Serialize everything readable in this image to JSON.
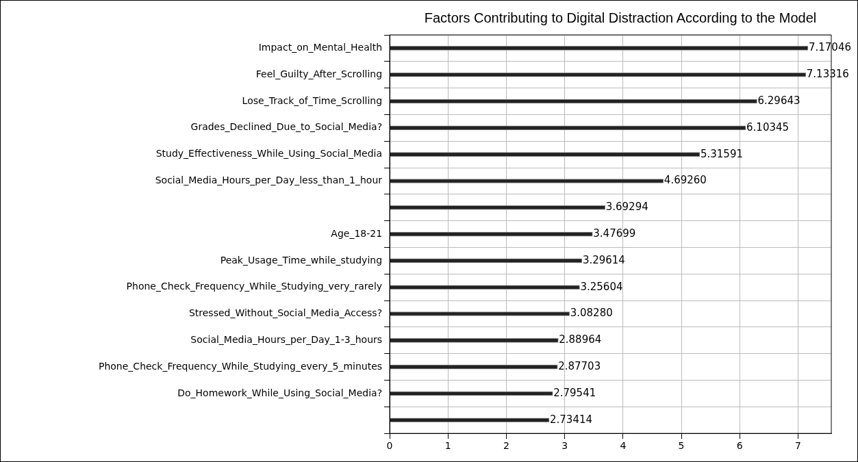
{
  "chart_data": {
    "type": "bar",
    "orientation": "horizontal",
    "title": "Factors Contributing to Digital Distraction According to the Model",
    "categories": [
      "Impact_on_Mental_Health",
      "Feel_Guilty_After_Scrolling",
      "Lose_Track_of_Time_Scrolling",
      "Grades_Declined_Due_to_Social_Media?",
      "Study_Effectiveness_While_Using_Social_Media",
      "Social_Media_Hours_per_Day_less_than_1_hour",
      null,
      "Age_18-21",
      "Peak_Usage_Time_while_studying",
      "Phone_Check_Frequency_While_Studying_very_rarely",
      "Stressed_Without_Social_Media_Access?",
      "Social_Media_Hours_per_Day_1-3_hours",
      "Phone_Check_Frequency_While_Studying_every_5_minutes",
      "Do_Homework_While_Using_Social_Media?",
      null
    ],
    "values": [
      7.17046,
      7.13316,
      6.29643,
      6.10345,
      5.31591,
      4.6926,
      3.69294,
      3.47699,
      3.29614,
      3.25604,
      3.0828,
      2.88964,
      2.87703,
      2.79541,
      2.73414
    ],
    "value_labels": [
      "7.17046",
      "7.13316",
      "6.29643",
      "6.10345",
      "5.31591",
      "4.69260",
      "3.69294",
      "3.47699",
      "3.29614",
      "3.25604",
      "3.08280",
      "2.88964",
      "2.87703",
      "2.79541",
      "2.73414"
    ],
    "color": "#222222",
    "xlim": [
      0,
      7.57
    ],
    "xticks": [
      0,
      1,
      2,
      3,
      4,
      5,
      6,
      7
    ],
    "grid": true,
    "legend": false
  }
}
